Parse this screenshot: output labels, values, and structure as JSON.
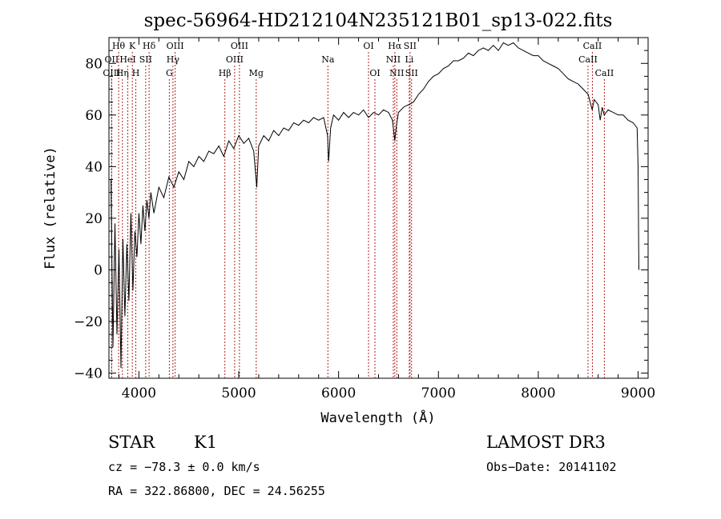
{
  "chart_data": {
    "type": "line",
    "title": "spec-56964-HD212104N235121B01_sp13-022.fits",
    "xlabel": "Wavelength (Å)",
    "ylabel": "Flux (relative)",
    "xlim": [
      3700,
      9100
    ],
    "ylim": [
      -42,
      90
    ],
    "x_ticks": [
      4000,
      5000,
      6000,
      7000,
      8000,
      9000
    ],
    "y_ticks": [
      -40,
      -20,
      0,
      20,
      40,
      60,
      80
    ],
    "grid": false,
    "line_color": "#000000",
    "marker_color": "#b22222",
    "series": [
      {
        "name": "flux",
        "points": [
          [
            3720,
            35
          ],
          [
            3740,
            -30
          ],
          [
            3760,
            18
          ],
          [
            3780,
            -25
          ],
          [
            3800,
            8
          ],
          [
            3820,
            -38
          ],
          [
            3840,
            12
          ],
          [
            3860,
            -18
          ],
          [
            3880,
            10
          ],
          [
            3900,
            -12
          ],
          [
            3920,
            22
          ],
          [
            3940,
            -8
          ],
          [
            3960,
            15
          ],
          [
            3980,
            5
          ],
          [
            4000,
            22
          ],
          [
            4020,
            10
          ],
          [
            4040,
            25
          ],
          [
            4060,
            15
          ],
          [
            4080,
            27
          ],
          [
            4100,
            20
          ],
          [
            4120,
            30
          ],
          [
            4150,
            22
          ],
          [
            4200,
            32
          ],
          [
            4250,
            28
          ],
          [
            4300,
            36
          ],
          [
            4350,
            32
          ],
          [
            4400,
            38
          ],
          [
            4450,
            35
          ],
          [
            4500,
            42
          ],
          [
            4550,
            40
          ],
          [
            4600,
            44
          ],
          [
            4650,
            42
          ],
          [
            4700,
            46
          ],
          [
            4750,
            45
          ],
          [
            4800,
            48
          ],
          [
            4850,
            44
          ],
          [
            4900,
            50
          ],
          [
            4950,
            47
          ],
          [
            5000,
            52
          ],
          [
            5050,
            49
          ],
          [
            5100,
            51
          ],
          [
            5150,
            46
          ],
          [
            5180,
            32
          ],
          [
            5200,
            48
          ],
          [
            5250,
            52
          ],
          [
            5300,
            50
          ],
          [
            5350,
            54
          ],
          [
            5400,
            52
          ],
          [
            5450,
            55
          ],
          [
            5500,
            54
          ],
          [
            5550,
            57
          ],
          [
            5600,
            56
          ],
          [
            5650,
            58
          ],
          [
            5700,
            57
          ],
          [
            5750,
            59
          ],
          [
            5800,
            58
          ],
          [
            5850,
            59
          ],
          [
            5890,
            52
          ],
          [
            5900,
            42
          ],
          [
            5920,
            55
          ],
          [
            5950,
            60
          ],
          [
            6000,
            58
          ],
          [
            6050,
            61
          ],
          [
            6100,
            59
          ],
          [
            6150,
            61
          ],
          [
            6200,
            60
          ],
          [
            6250,
            62
          ],
          [
            6300,
            59
          ],
          [
            6350,
            61
          ],
          [
            6400,
            60
          ],
          [
            6450,
            62
          ],
          [
            6500,
            61
          ],
          [
            6540,
            58
          ],
          [
            6563,
            50
          ],
          [
            6580,
            56
          ],
          [
            6600,
            61
          ],
          [
            6650,
            63
          ],
          [
            6700,
            64
          ],
          [
            6750,
            65
          ],
          [
            6800,
            68
          ],
          [
            6850,
            70
          ],
          [
            6900,
            73
          ],
          [
            6950,
            75
          ],
          [
            7000,
            76
          ],
          [
            7050,
            78
          ],
          [
            7100,
            79
          ],
          [
            7150,
            81
          ],
          [
            7200,
            81
          ],
          [
            7250,
            82
          ],
          [
            7300,
            84
          ],
          [
            7350,
            83
          ],
          [
            7400,
            85
          ],
          [
            7450,
            86
          ],
          [
            7500,
            85
          ],
          [
            7550,
            87
          ],
          [
            7600,
            85
          ],
          [
            7650,
            88
          ],
          [
            7700,
            87
          ],
          [
            7750,
            88
          ],
          [
            7800,
            86
          ],
          [
            7850,
            85
          ],
          [
            7900,
            84
          ],
          [
            7950,
            83
          ],
          [
            8000,
            83
          ],
          [
            8050,
            81
          ],
          [
            8100,
            80
          ],
          [
            8150,
            79
          ],
          [
            8200,
            78
          ],
          [
            8250,
            76
          ],
          [
            8300,
            74
          ],
          [
            8350,
            73
          ],
          [
            8400,
            72
          ],
          [
            8450,
            70
          ],
          [
            8500,
            68
          ],
          [
            8540,
            62
          ],
          [
            8560,
            66
          ],
          [
            8600,
            64
          ],
          [
            8620,
            58
          ],
          [
            8640,
            63
          ],
          [
            8660,
            60
          ],
          [
            8700,
            62
          ],
          [
            8750,
            61
          ],
          [
            8800,
            60
          ],
          [
            8850,
            60
          ],
          [
            8900,
            58
          ],
          [
            8950,
            57
          ],
          [
            8990,
            55
          ],
          [
            9000,
            40
          ],
          [
            9005,
            10
          ],
          [
            9008,
            0
          ]
        ]
      }
    ],
    "line_markers": [
      {
        "label": "Hθ",
        "wavelength": 3797,
        "row": 1
      },
      {
        "label": "OII",
        "wavelength": 3727,
        "row": 2
      },
      {
        "label": "OIII",
        "wavelength": 3727,
        "row": 3
      },
      {
        "label": "K",
        "wavelength": 3934,
        "row": 1
      },
      {
        "label": "HeI",
        "wavelength": 3889,
        "row": 2
      },
      {
        "label": "Hη",
        "wavelength": 3835,
        "row": 3
      },
      {
        "label": "H",
        "wavelength": 3969,
        "row": 3
      },
      {
        "label": "Hδ",
        "wavelength": 4102,
        "row": 1
      },
      {
        "label": "SII",
        "wavelength": 4068,
        "row": 2
      },
      {
        "label": "OIII",
        "wavelength": 4363,
        "row": 1
      },
      {
        "label": "Hγ",
        "wavelength": 4341,
        "row": 2
      },
      {
        "label": "G",
        "wavelength": 4305,
        "row": 3
      },
      {
        "label": "Hβ",
        "wavelength": 4861,
        "row": 3
      },
      {
        "label": "OIII",
        "wavelength": 5007,
        "row": 1
      },
      {
        "label": "OIII",
        "wavelength": 4959,
        "row": 2
      },
      {
        "label": "Mg",
        "wavelength": 5175,
        "row": 3
      },
      {
        "label": "Na",
        "wavelength": 5893,
        "row": 2
      },
      {
        "label": "OI",
        "wavelength": 6300,
        "row": 1
      },
      {
        "label": "OI",
        "wavelength": 6364,
        "row": 3
      },
      {
        "label": "Hα",
        "wavelength": 6563,
        "row": 1
      },
      {
        "label": "SII",
        "wavelength": 6716,
        "row": 1
      },
      {
        "label": "NII",
        "wavelength": 6548,
        "row": 2
      },
      {
        "label": "Li",
        "wavelength": 6708,
        "row": 2
      },
      {
        "label": "NII",
        "wavelength": 6583,
        "row": 3
      },
      {
        "label": "SII",
        "wavelength": 6731,
        "row": 3
      },
      {
        "label": "CaII",
        "wavelength": 8542,
        "row": 1
      },
      {
        "label": "CaII",
        "wavelength": 8498,
        "row": 2
      },
      {
        "label": "CaII",
        "wavelength": 8662,
        "row": 3
      }
    ]
  },
  "info": {
    "object_class": "STAR",
    "subclass": "K1",
    "survey": "LAMOST DR3",
    "redshift_line": "cz = −78.3 ± 0.0 km/s",
    "obs_date_line": "Obs−Date: 20141102",
    "coords_line": "RA = 322.86800, DEC =  24.56255"
  }
}
